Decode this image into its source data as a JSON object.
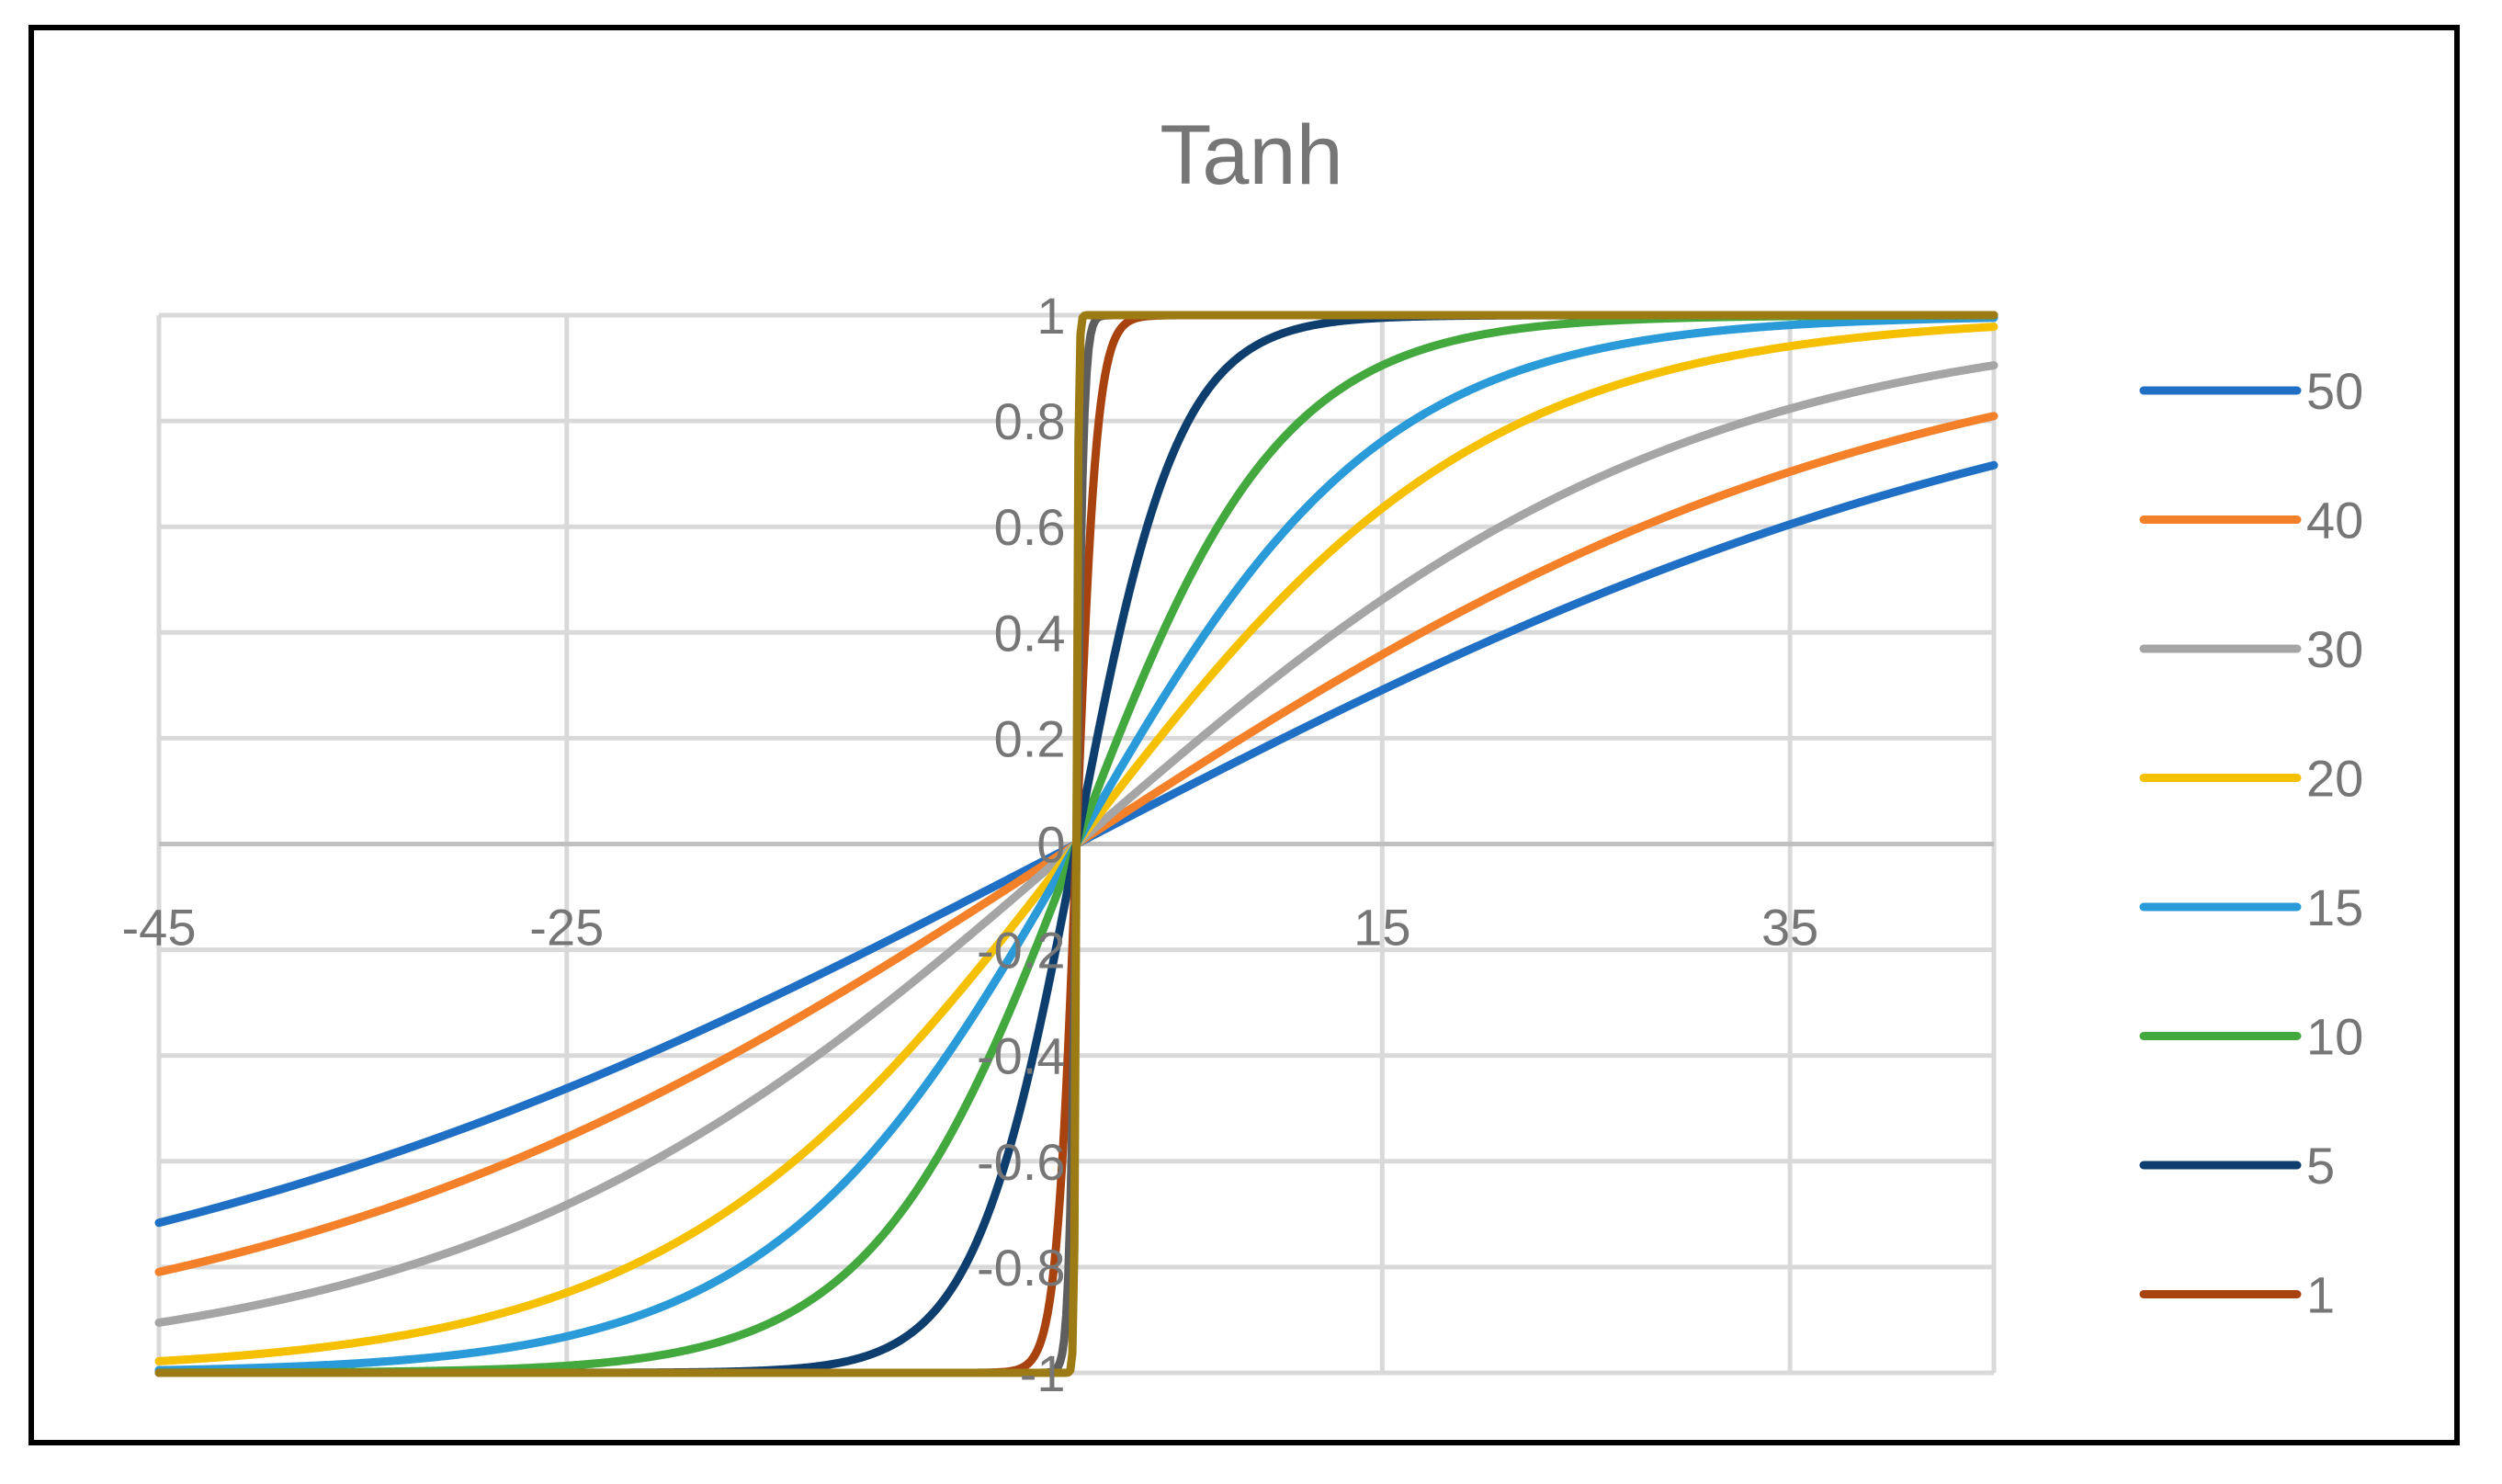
{
  "chart_data": {
    "type": "line",
    "title": "Tanh",
    "xlabel": "",
    "ylabel": "",
    "xlim": [
      -45,
      45
    ],
    "ylim": [
      -1,
      1
    ],
    "x_ticks": [
      -45,
      -25,
      -5,
      15,
      35
    ],
    "x_tick_labels": [
      "-45",
      "-25",
      "",
      "15",
      "35"
    ],
    "y_ticks": [
      1,
      0.8,
      0.6,
      0.4,
      0.2,
      0,
      -0.2,
      -0.4,
      -0.6,
      -0.8,
      -1
    ],
    "y_tick_labels": [
      "1",
      "0.8",
      "0.6",
      "0.4",
      "0.2",
      "0",
      "-0.2",
      "-0.4",
      "-0.6",
      "-0.8",
      "-1"
    ],
    "grid": true,
    "legend_position": "right",
    "series": [
      {
        "name": "50",
        "color": "#1f6fc5",
        "scale": 50
      },
      {
        "name": "40",
        "color": "#f5802a",
        "scale": 40
      },
      {
        "name": "30",
        "color": "#a5a5a5",
        "scale": 30
      },
      {
        "name": "20",
        "color": "#f5c000",
        "scale": 20
      },
      {
        "name": "15",
        "color": "#2a9ad8",
        "scale": 15
      },
      {
        "name": "10",
        "color": "#43a93f",
        "scale": 10
      },
      {
        "name": "5",
        "color": "#0e3e6e",
        "scale": 5
      },
      {
        "name": "1",
        "color": "#a84310",
        "scale": 1
      }
    ],
    "extra_lines": [
      {
        "color": "#5e5e5e",
        "scale": 0.35
      },
      {
        "color": "#9c7a14",
        "scale": 0.1
      }
    ],
    "function": "y = tanh(x / scale)"
  }
}
